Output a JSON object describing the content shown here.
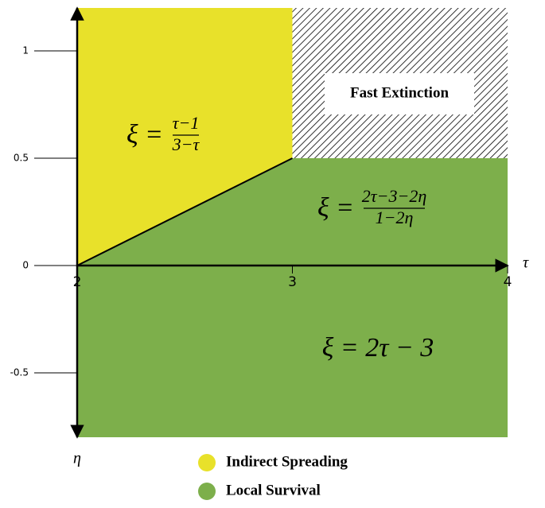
{
  "chart_data": {
    "type": "phase",
    "x_label": "τ",
    "y_label": "η",
    "xlim": [
      2,
      4
    ],
    "ylim": [
      -0.8,
      1.2
    ],
    "xticks": [
      2,
      3,
      4
    ],
    "yticks": [
      -0.5,
      0,
      0.5,
      1
    ],
    "regions": [
      {
        "fill": "#e8e12a",
        "x": [
          2,
          2,
          3,
          3
        ],
        "y": [
          0,
          1.2,
          1.2,
          0.5
        ],
        "label": {
          "lhs": "ξ =",
          "num": "τ−1",
          "den": "3−τ"
        }
      },
      {
        "fill": "hatch",
        "x": [
          3,
          3,
          4,
          4
        ],
        "y": [
          0.5,
          1.2,
          1.2,
          0.5
        ],
        "label": {
          "text": "Fast Extinction"
        }
      },
      {
        "fill": "#7daf4b",
        "x": [
          2,
          3,
          4,
          4
        ],
        "y": [
          0,
          0.5,
          0.5,
          0
        ],
        "label": {
          "lhs": "ξ =",
          "num": "2τ−3−2η",
          "den": "1−2η"
        }
      },
      {
        "fill": "#7daf4b",
        "x": [
          2,
          4,
          4,
          2
        ],
        "y": [
          0,
          0,
          -0.8,
          -0.8
        ],
        "label": {
          "text": "ξ = 2τ − 3"
        }
      }
    ],
    "legend": [
      {
        "name": "Indirect Spreading",
        "color": "#e8e12a"
      },
      {
        "name": "Local Survival",
        "color": "#7daf4b"
      }
    ]
  }
}
